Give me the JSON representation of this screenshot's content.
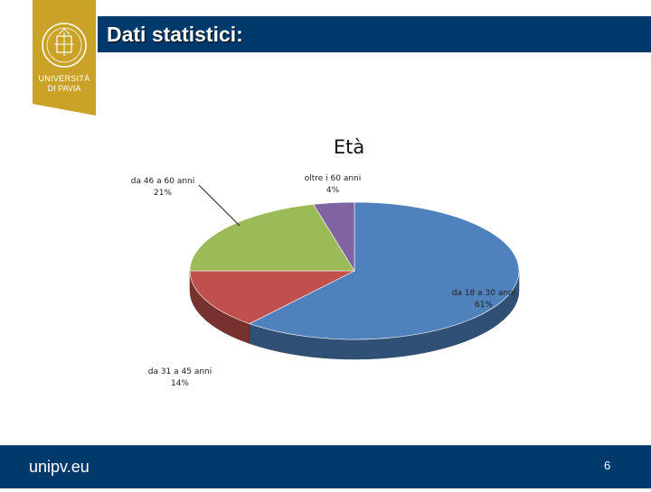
{
  "logo": {
    "text_line1": "UNIVERSITÀ",
    "text_line2": "DI PAVIA",
    "colors": {
      "background": "#c9a227",
      "emblem": "#ffffff"
    }
  },
  "header": {
    "title": "Dati statistici:"
  },
  "footer": {
    "site": "unipv.eu",
    "page_number": "6"
  },
  "colors": {
    "bar": "#003a6c",
    "text_on_bar": "#ffffff"
  },
  "chart_data": {
    "type": "pie",
    "title": "Età",
    "slices": [
      {
        "label": "da 18 a 30 anni",
        "value": 61,
        "value_label": "61%",
        "color": "#4f81bd"
      },
      {
        "label": "da 31 a 45 anni",
        "value": 14,
        "value_label": "14%",
        "color": "#c0504d"
      },
      {
        "label": "da 46 a 60 anni",
        "value": 21,
        "value_label": "21%",
        "color": "#9bbb59"
      },
      {
        "label": "oltre i 60 anni",
        "value": 4,
        "value_label": "4%",
        "color": "#8064a2"
      }
    ]
  }
}
